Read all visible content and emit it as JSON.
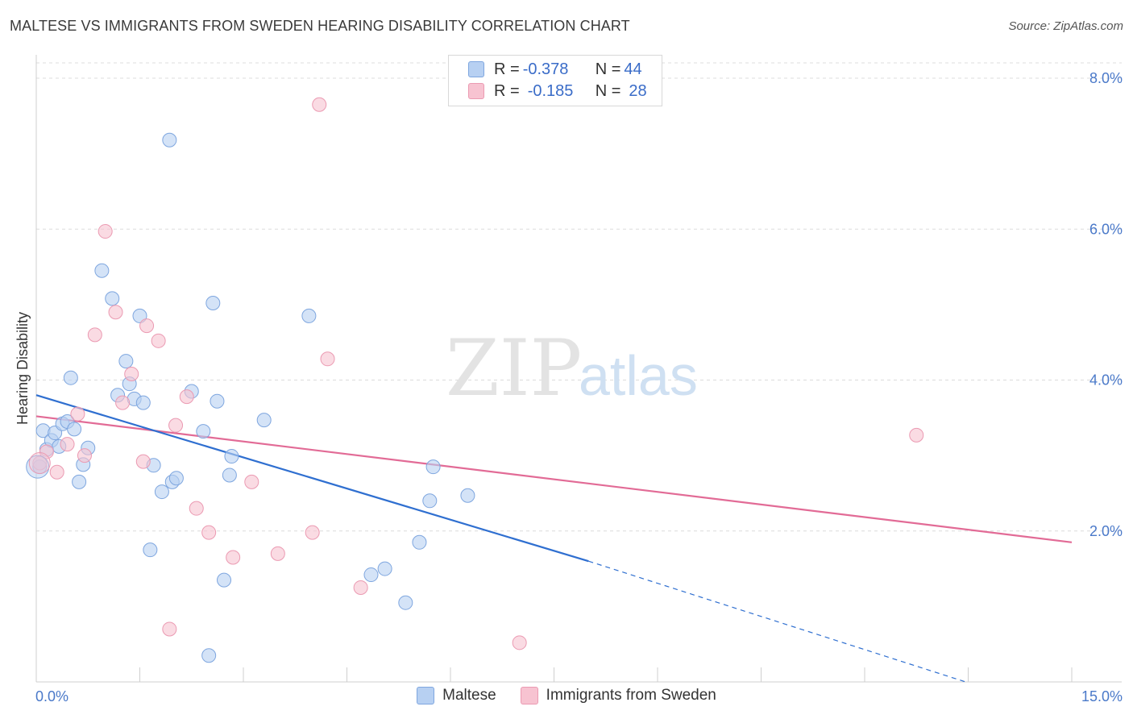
{
  "title": "MALTESE VS IMMIGRANTS FROM SWEDEN HEARING DISABILITY CORRELATION CHART",
  "source": "Source: ZipAtlas.com",
  "watermark": {
    "zip": "ZIP",
    "atlas": "atlas"
  },
  "legend": {
    "row1": {
      "r_label": "R = ",
      "r_value": "-0.378",
      "n_label": "N = ",
      "n_value": "44"
    },
    "row2": {
      "r_label": "R = ",
      "r_value": "-0.185",
      "n_label": "N = ",
      "n_value": "28"
    }
  },
  "bottom_legend": {
    "maltese": "Maltese",
    "sweden": "Immigrants from Sweden"
  },
  "colors": {
    "blue_fill": "#b7d0f2",
    "blue_stroke": "#7ea6df",
    "blue_line": "#2f6fd0",
    "pink_fill": "#f7c3d1",
    "pink_stroke": "#eb9ab2",
    "pink_line": "#e26b96",
    "grid": "#dcdcdc",
    "axis_text": "#4a79c9"
  },
  "chart_data": {
    "type": "scatter",
    "title": "MALTESE VS IMMIGRANTS FROM SWEDEN HEARING DISABILITY CORRELATION CHART",
    "xlabel": "",
    "ylabel": "Hearing Disability",
    "xlim": [
      0,
      15
    ],
    "ylim": [
      0,
      8.2
    ],
    "y_ticks": [
      2,
      4,
      6,
      8
    ],
    "y_tick_labels": [
      "2.0%",
      "4.0%",
      "6.0%",
      "8.0%"
    ],
    "x_tick_labels": [
      "0.0%",
      "15.0%"
    ],
    "grid": "horizontal dashed",
    "legend_position": "top-center",
    "series": [
      {
        "name": "Maltese",
        "color": "#b7d0f2",
        "points": [
          [
            0.05,
            2.85
          ],
          [
            0.1,
            3.33
          ],
          [
            0.15,
            3.08
          ],
          [
            0.22,
            3.2
          ],
          [
            0.27,
            3.3
          ],
          [
            0.33,
            3.12
          ],
          [
            0.38,
            3.42
          ],
          [
            0.45,
            3.45
          ],
          [
            0.5,
            4.03
          ],
          [
            0.55,
            3.35
          ],
          [
            0.62,
            2.65
          ],
          [
            0.68,
            2.88
          ],
          [
            0.75,
            3.1
          ],
          [
            0.95,
            5.45
          ],
          [
            1.1,
            5.08
          ],
          [
            1.18,
            3.8
          ],
          [
            1.3,
            4.25
          ],
          [
            1.35,
            3.95
          ],
          [
            1.42,
            3.75
          ],
          [
            1.5,
            4.85
          ],
          [
            1.55,
            3.7
          ],
          [
            1.65,
            1.75
          ],
          [
            1.7,
            2.87
          ],
          [
            1.82,
            2.52
          ],
          [
            1.93,
            7.18
          ],
          [
            1.97,
            2.65
          ],
          [
            2.03,
            2.7
          ],
          [
            2.25,
            3.85
          ],
          [
            2.42,
            3.32
          ],
          [
            2.5,
            0.35
          ],
          [
            2.56,
            5.02
          ],
          [
            2.62,
            3.72
          ],
          [
            2.72,
            1.35
          ],
          [
            2.8,
            2.74
          ],
          [
            2.83,
            2.99
          ],
          [
            3.3,
            3.47
          ],
          [
            3.95,
            4.85
          ],
          [
            4.85,
            1.42
          ],
          [
            5.05,
            1.5
          ],
          [
            5.35,
            1.05
          ],
          [
            5.55,
            1.85
          ],
          [
            5.7,
            2.4
          ],
          [
            5.75,
            2.85
          ],
          [
            6.25,
            2.47
          ]
        ],
        "trend": {
          "x": [
            0,
            8.0
          ],
          "y": [
            3.8,
            1.6
          ]
        },
        "trend_extension": {
          "x": [
            8.0,
            15.0
          ],
          "y": [
            1.6,
            -0.45
          ]
        }
      },
      {
        "name": "Immigrants from Sweden",
        "color": "#f7c3d1",
        "points": [
          [
            0.05,
            2.9
          ],
          [
            0.15,
            3.05
          ],
          [
            0.3,
            2.78
          ],
          [
            0.45,
            3.15
          ],
          [
            0.6,
            3.55
          ],
          [
            0.7,
            3.0
          ],
          [
            0.85,
            4.6
          ],
          [
            1.0,
            5.97
          ],
          [
            1.15,
            4.9
          ],
          [
            1.25,
            3.7
          ],
          [
            1.38,
            4.08
          ],
          [
            1.55,
            2.92
          ],
          [
            1.6,
            4.72
          ],
          [
            1.77,
            4.52
          ],
          [
            1.93,
            0.7
          ],
          [
            2.02,
            3.4
          ],
          [
            2.18,
            3.78
          ],
          [
            2.32,
            2.3
          ],
          [
            2.5,
            1.98
          ],
          [
            2.85,
            1.65
          ],
          [
            3.12,
            2.65
          ],
          [
            3.5,
            1.7
          ],
          [
            4.0,
            1.98
          ],
          [
            4.1,
            7.65
          ],
          [
            4.22,
            4.28
          ],
          [
            4.7,
            1.25
          ],
          [
            7.0,
            0.52
          ],
          [
            12.75,
            3.27
          ]
        ],
        "trend": {
          "x": [
            0,
            15.0
          ],
          "y": [
            3.52,
            1.85
          ]
        }
      }
    ]
  }
}
